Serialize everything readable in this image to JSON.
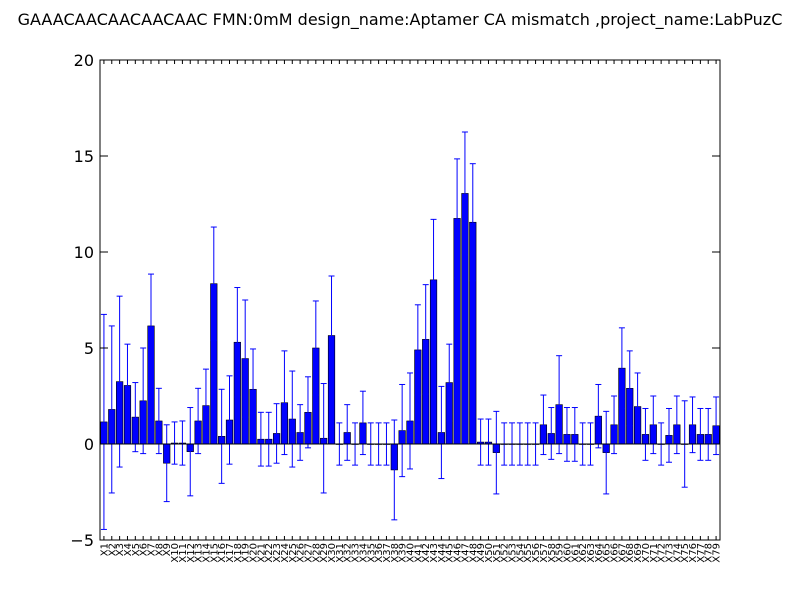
{
  "chart_data": {
    "type": "bar",
    "title": "GAAACAACAACAACAAC  FMN:0mM  design_name:Aptamer CA mismatch ,project_name:LabPuzC",
    "xlabel": "",
    "ylabel": "",
    "ylim": [
      -5,
      20
    ],
    "yticks": [
      "−5",
      "0",
      "5",
      "10",
      "15",
      "20"
    ],
    "ytick_values": [
      -5,
      0,
      5,
      10,
      15,
      20
    ],
    "grid": false,
    "bar_color": "#0000ff",
    "error_color": "#0000ff",
    "categories": [
      "X1",
      "X2",
      "X3",
      "X4",
      "X5",
      "X6",
      "X7",
      "X8",
      "X9",
      "X10",
      "X11",
      "X12",
      "X13",
      "X14",
      "X15",
      "X16",
      "X17",
      "X18",
      "X19",
      "X20",
      "X21",
      "X22",
      "X23",
      "X24",
      "X25",
      "X26",
      "X27",
      "X28",
      "X29",
      "X30",
      "X31",
      "X32",
      "X33",
      "X34",
      "X35",
      "X36",
      "X37",
      "X38",
      "X39",
      "X40",
      "X41",
      "X42",
      "X43",
      "X44",
      "X45",
      "X46",
      "X47",
      "X48",
      "X49",
      "X50",
      "X51",
      "X52",
      "X53",
      "X54",
      "X55",
      "X56",
      "X57",
      "X58",
      "X59",
      "X60",
      "X61",
      "X62",
      "X63",
      "X64",
      "X65",
      "X66",
      "X67",
      "X68",
      "X69",
      "X70",
      "X71",
      "X72",
      "X73",
      "X74",
      "X75",
      "X76",
      "X77",
      "X78",
      "X79"
    ],
    "values": [
      1.15,
      1.8,
      3.25,
      3.05,
      1.4,
      2.25,
      6.15,
      1.2,
      -1.0,
      0.05,
      0.05,
      -0.4,
      1.2,
      2.0,
      8.35,
      0.4,
      1.25,
      5.3,
      4.45,
      2.85,
      0.25,
      0.25,
      0.55,
      2.15,
      1.3,
      0.6,
      1.65,
      5.0,
      0.3,
      5.65,
      0.0,
      0.6,
      0.0,
      1.1,
      0.0,
      0.0,
      0.0,
      -1.35,
      0.7,
      1.2,
      4.9,
      5.45,
      8.55,
      0.6,
      3.2,
      11.75,
      13.05,
      11.55,
      0.1,
      0.1,
      -0.45,
      0.0,
      0.0,
      0.0,
      0.0,
      0.0,
      1.0,
      0.55,
      2.05,
      0.5,
      0.5,
      0.0,
      0.0,
      1.45,
      -0.45,
      1.0,
      3.95,
      2.9,
      1.95,
      0.5,
      1.0,
      0.0,
      0.45,
      1.0,
      0.0,
      1.0,
      0.5,
      0.5,
      0.95
    ],
    "errors": [
      5.6,
      4.35,
      4.45,
      2.15,
      1.8,
      2.75,
      2.7,
      1.7,
      2.0,
      1.1,
      1.15,
      2.3,
      1.7,
      1.9,
      2.95,
      2.45,
      2.3,
      2.85,
      3.05,
      2.1,
      1.4,
      1.4,
      1.55,
      2.7,
      2.5,
      1.45,
      1.85,
      2.45,
      2.85,
      3.1,
      1.1,
      1.45,
      1.1,
      1.65,
      1.1,
      1.1,
      1.1,
      2.6,
      2.4,
      2.5,
      2.35,
      2.85,
      3.15,
      2.4,
      2.0,
      3.1,
      3.2,
      3.05,
      1.2,
      1.2,
      2.15,
      1.1,
      1.1,
      1.1,
      1.1,
      1.1,
      1.55,
      1.35,
      2.55,
      1.4,
      1.4,
      1.1,
      1.1,
      1.65,
      2.15,
      1.5,
      2.1,
      1.95,
      1.75,
      1.35,
      1.5,
      1.1,
      1.4,
      1.5,
      2.25,
      1.45,
      1.35,
      1.35,
      1.5
    ]
  }
}
